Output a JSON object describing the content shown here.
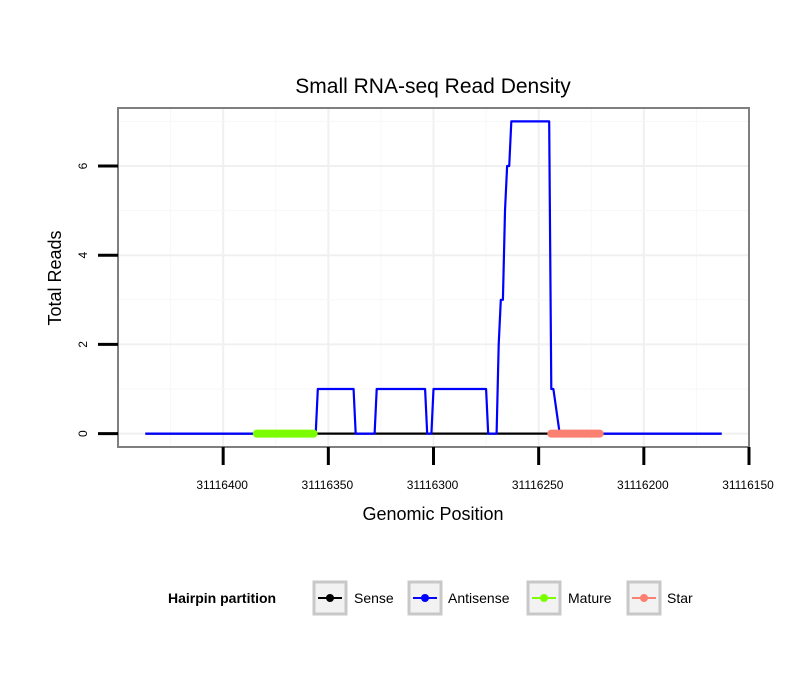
{
  "chart_data": {
    "type": "line",
    "title": "Small RNA-seq Read Density",
    "xlabel": "Genomic Position",
    "ylabel": "Total Reads",
    "x_reversed": true,
    "xlim": [
      31116450,
      31116150
    ],
    "ylim": [
      -0.3,
      7.3
    ],
    "x_ticks": [
      31116400,
      31116350,
      31116300,
      31116250,
      31116200,
      31116150
    ],
    "x_tick_labels": [
      "31116400",
      "31116350",
      "31116300",
      "31116250",
      "31116200",
      "31116150"
    ],
    "y_ticks": [
      0,
      2,
      4,
      6
    ],
    "y_tick_labels": [
      "0",
      "2",
      "4",
      "6"
    ],
    "grid": true,
    "legend": {
      "title": "Hairpin partition",
      "placement": "bottom",
      "entries": [
        "Sense",
        "Antisense",
        "Mature",
        "Star"
      ]
    },
    "series": [
      {
        "name": "Sense",
        "color": "#000000",
        "x": [
          31116437,
          31116163
        ],
        "y": [
          0,
          0
        ]
      },
      {
        "name": "Antisense",
        "color": "#0000ff",
        "x": [
          31116437,
          31116356,
          31116355,
          31116338,
          31116337,
          31116328,
          31116327,
          31116304,
          31116303,
          31116301,
          31116300,
          31116275,
          31116274,
          31116270,
          31116269,
          31116268,
          31116267,
          31116266,
          31116265,
          31116264,
          31116263,
          31116261,
          31116245,
          31116244,
          31116243,
          31116240,
          31116163
        ],
        "y": [
          0,
          0,
          1,
          1,
          0,
          0,
          1,
          1,
          0,
          0,
          1,
          1,
          0,
          0,
          2,
          3,
          3,
          5,
          6,
          6,
          7,
          7,
          7,
          1,
          1,
          0,
          0
        ]
      },
      {
        "name": "Mature",
        "color": "#7cfc00",
        "x": [
          31116384,
          31116357
        ],
        "y": [
          0,
          0
        ]
      },
      {
        "name": "Star",
        "color": "#fa8072",
        "x": [
          31116244,
          31116221
        ],
        "y": [
          0,
          0
        ]
      }
    ]
  }
}
